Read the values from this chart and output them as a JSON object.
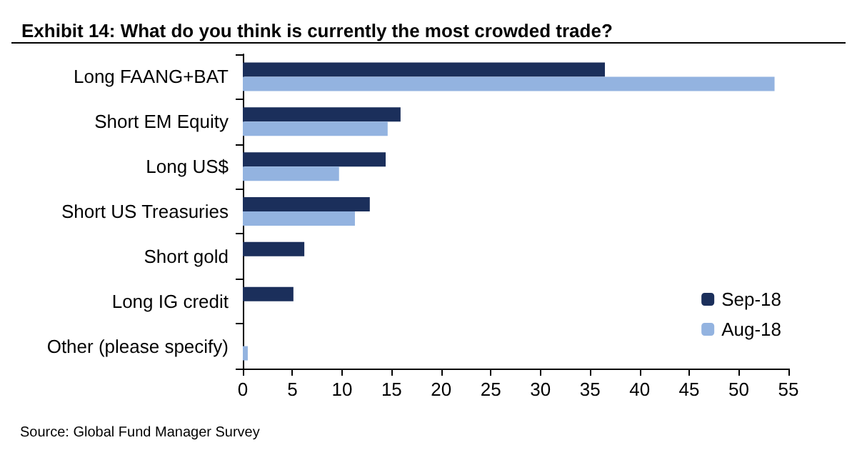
{
  "chart_data": {
    "type": "bar",
    "orientation": "horizontal",
    "title": "Exhibit 14: What do you think is currently the most crowded trade?",
    "categories": [
      "Long FAANG+BAT",
      "Short EM Equity",
      "Long US$",
      "Short US Treasuries",
      "Short gold",
      "Long IG credit",
      "Other (please specify)"
    ],
    "series": [
      {
        "name": "Sep-18",
        "color": "#1b2f5b",
        "values": [
          36.5,
          15.9,
          14.4,
          12.8,
          6.2,
          5.1,
          null
        ]
      },
      {
        "name": "Aug-18",
        "color": "#93b3e0",
        "values": [
          53.6,
          14.6,
          9.7,
          11.3,
          null,
          null,
          0.5
        ]
      }
    ],
    "xlim": [
      0,
      55
    ],
    "xticks": [
      0,
      5,
      10,
      15,
      20,
      25,
      30,
      35,
      40,
      45,
      50,
      55
    ],
    "grid": false,
    "legend": "bottom right",
    "annotations": [
      "Source: Global Fund Manager Survey"
    ]
  }
}
